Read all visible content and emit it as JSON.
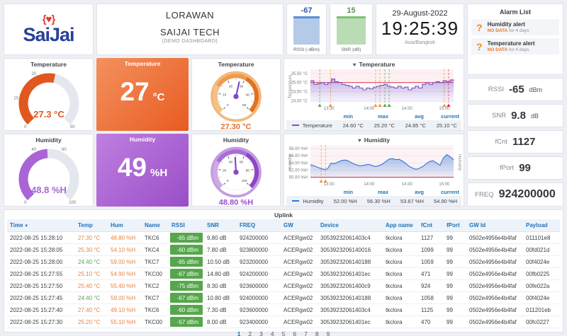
{
  "colors": {
    "link_blue": "#1f72b8",
    "orange": "#e8823c",
    "green": "#56a64b",
    "temp_accent": "#e0581f",
    "hum_accent": "#9b51cc",
    "badge_green": "#56a64b",
    "threshold_red": "#e02f44"
  },
  "header": {
    "logo": {
      "brand": "SaiJai",
      "icon_braces_left": "{",
      "icon_heart": "♥",
      "icon_braces_right": "}"
    },
    "title": {
      "line1": "LORAWAN",
      "line2": "SAIJAI TECH",
      "line3": "(DEMO DASHBOARD)"
    },
    "rssi_mini": {
      "value": "-67",
      "label": "RSSI (-dBm)"
    },
    "snr_mini": {
      "value": "15",
      "label": "SNR (dB)"
    },
    "clock": {
      "date": "29-August-2022",
      "time": "19:25:39",
      "timezone": "Asia/Bangkok"
    }
  },
  "alarm_list": {
    "title": "Alarm List",
    "items": [
      {
        "icon": "question-mark",
        "name": "Humidity alert",
        "status": "NO DATA",
        "since": "for 4 days"
      },
      {
        "icon": "question-mark",
        "name": "Temperature alert",
        "status": "NO DATA",
        "since": "for 4 days"
      }
    ]
  },
  "gauges": {
    "temp_gauge": {
      "title": "Temperature",
      "min": 0,
      "max": 50,
      "value": 27.3,
      "display": "27.3 °C",
      "labels": [
        0,
        10,
        20,
        50
      ],
      "color": "#e0581f"
    },
    "temp_stat": {
      "title": "Temperature",
      "value": "27",
      "unit": "°C"
    },
    "temp_dial": {
      "title": "Temperature",
      "min": 0,
      "max": 50,
      "value": 27.3,
      "display": "27.30 °C",
      "labels": [
        0,
        10,
        20,
        30,
        40,
        50
      ],
      "needle": "#7c4dca",
      "value_color": "#e8702a",
      "ring": [
        "#f5c084",
        "#f09b4c",
        "#e3711f"
      ],
      "outer": "#f2b87c"
    },
    "hum_gauge": {
      "title": "Humidity",
      "min": 0,
      "max": 100,
      "value": 48.8,
      "display": "48.8 %H",
      "labels": [
        0,
        40,
        60,
        100
      ],
      "color": "#a964d6"
    },
    "hum_stat": {
      "title": "Humidity",
      "value": "49",
      "unit": "%H"
    },
    "hum_dial": {
      "title": "Humidity",
      "min": 0,
      "max": 100,
      "value": 48.8,
      "display": "48.80 %H",
      "labels": [
        0,
        20,
        40,
        60,
        80,
        100
      ],
      "needle": "#8d46c4",
      "value_color": "#9b51cc",
      "ring": [
        "#cfa9e6",
        "#a96fd6",
        "#8d46c4"
      ],
      "outer": "#c59ce0"
    }
  },
  "right_panels": [
    {
      "label": "RSSI",
      "value": "-65",
      "unit": "dBm"
    },
    {
      "label": "SNR",
      "value": "9.8",
      "unit": "dB"
    },
    {
      "label": "fCnt",
      "value": "1127",
      "unit": ""
    },
    {
      "label": "fPort",
      "value": "99",
      "unit": ""
    },
    {
      "label": "FREQ",
      "value": "924200000",
      "unit": ""
    }
  ],
  "chart_data": [
    {
      "type": "line",
      "title": "Temperature",
      "icon": "heart-icon",
      "ylabel": "Temperature",
      "ylabel_right": "",
      "x_ticks": [
        "13:30",
        "14:00",
        "14:30",
        "15:00"
      ],
      "x_tick_pos": [
        0.13,
        0.41,
        0.675,
        0.935
      ],
      "y_ticks": [
        "25.50 °C",
        "25.00 °C",
        "24.50 °C",
        "24.00 °C"
      ],
      "y_tick_values": [
        25.5,
        25.0,
        24.5,
        24.0
      ],
      "ylim": [
        23.9,
        25.65
      ],
      "threshold": 25.0,
      "threshold_color": "#e02f44",
      "threshold_fill": "rgba(224,47,68,0.07)",
      "step": true,
      "legend_position": "bottom",
      "grid": true,
      "series": [
        {
          "name": "Temperature",
          "color": "#7d53c1",
          "values": [
            25.1,
            24.9,
            24.95,
            25.0,
            24.9,
            25.0,
            25.2,
            25.05,
            25.0,
            24.9,
            24.85,
            24.8,
            24.7,
            24.8,
            24.7,
            24.6,
            24.7,
            24.65,
            24.75,
            24.8,
            24.85,
            24.9,
            24.8,
            24.75,
            24.7,
            24.8,
            24.7,
            24.75,
            24.6,
            24.7,
            24.8,
            24.7,
            24.9,
            25.0,
            24.9,
            25.0,
            25.05,
            25.0,
            25.1,
            25.05,
            25.15,
            25.1
          ]
        }
      ],
      "annotations": [
        {
          "x": 0.065,
          "color": "#56a64b"
        },
        {
          "x": 0.14,
          "color": "#f29135"
        },
        {
          "x": 0.455,
          "color": "#f29135"
        },
        {
          "x": 0.485,
          "color": "#f29135"
        },
        {
          "x": 0.52,
          "color": "#56a64b"
        },
        {
          "x": 0.55,
          "color": "#56a64b"
        },
        {
          "x": 0.935,
          "color": "#f29135"
        },
        {
          "x": 0.965,
          "color": "#e02f44"
        }
      ],
      "stat_labels": [
        "min",
        "max",
        "avg",
        "current"
      ],
      "stats": {
        "min": "24.60 °C",
        "max": "25.20 °C",
        "avg": "24.85 °C",
        "current": "25.10 °C"
      }
    },
    {
      "type": "line",
      "title": "Humidity",
      "icon": "heart-icon",
      "ylabel": "Humidity",
      "ylabel_right": "Humidity",
      "x_ticks": [
        "13:30",
        "14:00",
        "14:30",
        "15:00"
      ],
      "x_tick_pos": [
        0.13,
        0.41,
        0.675,
        0.935
      ],
      "y_ticks": [
        "58.00 %H",
        "56.00 %H",
        "54.00 %H",
        "52.00 %H",
        "50.00 %H"
      ],
      "y_tick_values": [
        58.0,
        56.0,
        54.0,
        52.0,
        50.0
      ],
      "ylim": [
        49.7,
        58.6
      ],
      "threshold": 50.0,
      "threshold_color": "#e02f44",
      "threshold_fill": "rgba(224,47,68,0.06)",
      "step": false,
      "legend_position": "bottom",
      "grid": true,
      "series": [
        {
          "name": "Humidity",
          "color": "#3274d9",
          "values": [
            53.5,
            53.2,
            52.8,
            52.4,
            52.2,
            52.3,
            53.9,
            53.8,
            54.2,
            54.6,
            54.8,
            54.6,
            54.1,
            53.6,
            53.3,
            53.2,
            53.4,
            53.6,
            53.3,
            53.0,
            53.2,
            53.6,
            54.3,
            55.0,
            55.2,
            54.9,
            55.0,
            54.5,
            53.8,
            53.0,
            52.5,
            52.2,
            52.5,
            53.0,
            53.8,
            54.4,
            54.6,
            54.0,
            53.3,
            55.4,
            56.3,
            55.7,
            54.9
          ]
        }
      ],
      "annotations": [
        {
          "x": 0.075,
          "color": "#f29135"
        },
        {
          "x": 0.105,
          "color": "#f29135"
        }
      ],
      "stat_labels": [
        "min",
        "max",
        "avg",
        "current"
      ],
      "stats": {
        "min": "52.00 %H",
        "max": "56.30 %H",
        "avg": "53.67 %H",
        "current": "54.90 %H"
      }
    }
  ],
  "uplink": {
    "title": "Uplink",
    "sort_icon": "▼",
    "columns": [
      {
        "label": "Time",
        "key": "time",
        "sorted": true
      },
      {
        "label": "Temp",
        "key": "temp"
      },
      {
        "label": "Hum",
        "key": "hum"
      },
      {
        "label": "Name",
        "key": "name"
      },
      {
        "label": "RSSI",
        "key": "rssi"
      },
      {
        "label": "SNR",
        "key": "snr"
      },
      {
        "label": "FREQ",
        "key": "freq"
      },
      {
        "label": "GW",
        "key": "gw"
      },
      {
        "label": "Device",
        "key": "device"
      },
      {
        "label": "App name",
        "key": "app"
      },
      {
        "label": "fCnt",
        "key": "fcnt"
      },
      {
        "label": "fPort",
        "key": "fport"
      },
      {
        "label": "GW Id",
        "key": "gwid"
      },
      {
        "label": "Payload",
        "key": "payload"
      }
    ],
    "rows": [
      {
        "time": "2022-08-25 15:28:10",
        "temp": "27.30 °C",
        "temp_color": "orange",
        "hum": "48.80 %H",
        "name": "TKC6",
        "rssi": "-65 dBm",
        "snr": "9.80 dB",
        "freq": "924200000",
        "gw": "ACERgw02",
        "device": "30539232061403c4",
        "app": "tkclora",
        "fcnt": "1127",
        "fport": "99",
        "gwid": "0502e4956e4b4faf",
        "payload": "011101e8"
      },
      {
        "time": "2022-08-25 15:28:05",
        "temp": "25.30 °C",
        "temp_color": "orange",
        "hum": "54.10 %H",
        "name": "TKC4",
        "rssi": "-60 dBm",
        "snr": "7.80 dB",
        "freq": "923800000",
        "gw": "ACERgw02",
        "device": "3053923206140016",
        "app": "tkclora",
        "fcnt": "1099",
        "fport": "99",
        "gwid": "0502e4956e4b4faf",
        "payload": "00fd021d"
      },
      {
        "time": "2022-08-25 15:28:00",
        "temp": "24.40 °C",
        "temp_color": "green",
        "hum": "59.00 %H",
        "name": "TKC7",
        "rssi": "-65 dBm",
        "snr": "10.50 dB",
        "freq": "923200000",
        "gw": "ACERgw02",
        "device": "3053923206140188",
        "app": "tkclora",
        "fcnt": "1059",
        "fport": "99",
        "gwid": "0502e4956e4b4faf",
        "payload": "00f4024e"
      },
      {
        "time": "2022-08-25 15:27:55",
        "temp": "25.10 °C",
        "temp_color": "orange",
        "hum": "54.90 %H",
        "name": "TKC00",
        "rssi": "-67 dBm",
        "snr": "14.80 dB",
        "freq": "924200000",
        "gw": "ACERgw02",
        "device": "30539232061401ec",
        "app": "tkclora",
        "fcnt": "471",
        "fport": "99",
        "gwid": "0502e4956e4b4faf",
        "payload": "00fb0225"
      },
      {
        "time": "2022-08-25 15:27:50",
        "temp": "25.40 °C",
        "temp_color": "orange",
        "hum": "55.40 %H",
        "name": "TKC2",
        "rssi": "-75 dBm",
        "snr": "8.30 dB",
        "freq": "923600000",
        "gw": "ACERgw02",
        "device": "30539232061400c9",
        "app": "tkclora",
        "fcnt": "924",
        "fport": "99",
        "gwid": "0502e4956e4b4faf",
        "payload": "00fe022a"
      },
      {
        "time": "2022-08-25 15:27:45",
        "temp": "24.40 °C",
        "temp_color": "green",
        "hum": "59.00 %H",
        "name": "TKC7",
        "rssi": "-67 dBm",
        "snr": "10.80 dB",
        "freq": "924000000",
        "gw": "ACERgw02",
        "device": "3053923206140188",
        "app": "tkclora",
        "fcnt": "1058",
        "fport": "99",
        "gwid": "0502e4956e4b4faf",
        "payload": "00f4024e"
      },
      {
        "time": "2022-08-25 15:27:40",
        "temp": "27.40 °C",
        "temp_color": "orange",
        "hum": "49.10 %H",
        "name": "TKC6",
        "rssi": "-60 dBm",
        "snr": "7.30 dB",
        "freq": "923600000",
        "gw": "ACERgw02",
        "device": "30539232061403c4",
        "app": "tkclora",
        "fcnt": "1125",
        "fport": "99",
        "gwid": "0502e4956e4b4faf",
        "payload": "011201eb"
      },
      {
        "time": "2022-08-25 15:27:30",
        "temp": "25.20 °C",
        "temp_color": "orange",
        "hum": "55.10 %H",
        "name": "TKC00",
        "rssi": "-57 dBm",
        "snr": "8.00 dB",
        "freq": "923400000",
        "gw": "ACERgw02",
        "device": "30539232061401ec",
        "app": "tkclora",
        "fcnt": "470",
        "fport": "99",
        "gwid": "0502e4956e4b4faf",
        "payload": "00fc0227"
      }
    ],
    "pages": [
      "1",
      "2",
      "3",
      "4",
      "5",
      "6",
      "7",
      "8",
      "9"
    ],
    "active_page": "1"
  }
}
